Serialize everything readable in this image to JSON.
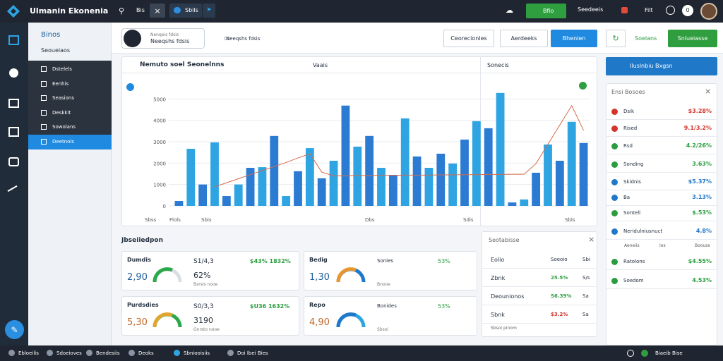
{
  "topbar": {
    "title": "Ulmanin Ekonenia",
    "tab": "Bis",
    "active_tab": "Sbils",
    "status": "Bfio",
    "menu": "Seedeeis",
    "filter": "Filt",
    "badge": "0"
  },
  "sidebar": {
    "title": "Binos",
    "subtitle": "Seoueiaos",
    "items": [
      "Dstelels",
      "Eenhis",
      "Seasions",
      "Deskkit",
      "Sowolans",
      "Deetnols"
    ]
  },
  "toolbar": {
    "search": "Neeqshs fdsis",
    "hint": "Nenqeis fdsis",
    "buttons": [
      "Ceorecionles",
      "Aerdeeks",
      "Bhenlen"
    ],
    "refresh": "Soelans",
    "action": "Snlueiasse"
  },
  "chart": {
    "type": "bar",
    "title": "Nemuto soel Seonelnns",
    "legend": "Vaais",
    "panel": "Sonecis",
    "colors": [
      "#2b7bd3",
      "#2ea4e2"
    ],
    "line_color": "#d66a4b",
    "values": [
      230,
      2670,
      1000,
      2970,
      460,
      1000,
      1780,
      1810,
      3270,
      460,
      1620,
      2700,
      1290,
      2110,
      4690,
      2770,
      3270,
      1780,
      1450,
      4090,
      2310,
      1780,
      2440,
      1980,
      3100,
      3960,
      3630,
      5280,
      160,
      300,
      1550,
      2870,
      2110,
      3930,
      2940
    ],
    "line_values": [
      null,
      null,
      null,
      890,
      1080,
      1270,
      1460,
      1650,
      1840,
      2030,
      2240,
      2440,
      1580,
      1400,
      1410,
      1420,
      1420,
      1430,
      1430,
      1440,
      1440,
      1440,
      1450,
      1450,
      1460,
      1460,
      1470,
      1470,
      1480,
      1480,
      1980,
      2880,
      3780,
      4690,
      3530
    ],
    "ylim": [
      0,
      6000
    ],
    "yticks": [
      0,
      1000,
      2000,
      3000,
      4000,
      5000
    ],
    "grid": true,
    "footer": [
      "Sbss",
      "Flols",
      "Sbis",
      "Dbs",
      "Sdis",
      "Sbls"
    ]
  },
  "ranking": {
    "header": "Iluslnbiu Bxgsn",
    "title": "Ensi Bosoes",
    "rows": [
      {
        "name": "Dsik",
        "value": "$3.28%",
        "color": "#d3342b"
      },
      {
        "name": "Rised",
        "value": "9.1/3.2%",
        "color": "#d3342b"
      },
      {
        "name": "Rsd",
        "value": "4.2/26%",
        "color": "#2a9d3e"
      },
      {
        "name": "Sonding",
        "value": "3.63%",
        "color": "#2a9d3e"
      },
      {
        "name": "Skidnis",
        "value": "$5.37%",
        "color": "#1f78c8"
      },
      {
        "name": "Ba",
        "value": "3.13%",
        "color": "#1f78c8"
      },
      {
        "name": "Sontell",
        "value": "$.53%",
        "color": "#2a9d3e"
      },
      {
        "name": "Neridulniusnuct",
        "value": "4.8%",
        "color": "#1f78c8"
      },
      {
        "name": "Ratolons",
        "value": "$4.55%",
        "color": "#2a9d3e"
      },
      {
        "name": "Soedom",
        "value": "4.53%",
        "color": "#2a9d3e"
      }
    ],
    "subrow": [
      "Aeneiis",
      "Ios",
      "Boouss"
    ]
  },
  "summary": {
    "title": "Jbseiiedpon",
    "cards": [
      {
        "label": "Dumdis",
        "big": "2,90",
        "k1": "S1/4,3",
        "k2": "62%",
        "note": "Bsrsis nooe",
        "delta": "$43% 1832%"
      },
      {
        "label": "Purdsdies",
        "big": "5,30",
        "k1": "S0/3,3",
        "k2": "3190",
        "note": "Gnrsto nooe",
        "delta": "$U36 1632%"
      },
      {
        "label": "Bedig",
        "big": "1,30",
        "k1": "Sonies",
        "k2": "53%",
        "note": "Bnooe"
      },
      {
        "label": "Repo",
        "big": "4,90",
        "k1": "Bonides",
        "k2": "53%",
        "note": "Sbsoi"
      }
    ]
  },
  "details": {
    "title": "Seotabisse",
    "rows": [
      [
        "Eolio",
        "Soeoio",
        "Sbi"
      ],
      [
        "Zbnk",
        "25.5%",
        "S/s"
      ],
      [
        "Deounionos",
        "S6.39%",
        "Sa"
      ],
      [
        "Sbnk",
        "$3.2%",
        "Sa"
      ]
    ],
    "note": "Sbsoi pinom"
  },
  "statusbar": {
    "items": [
      "Ebloeilis",
      "Sdoeioves",
      "Bendesiis",
      "Deoks",
      "Sbniooisiis",
      "Doi Ibei Bies"
    ],
    "right": "Biaeib Bise"
  }
}
